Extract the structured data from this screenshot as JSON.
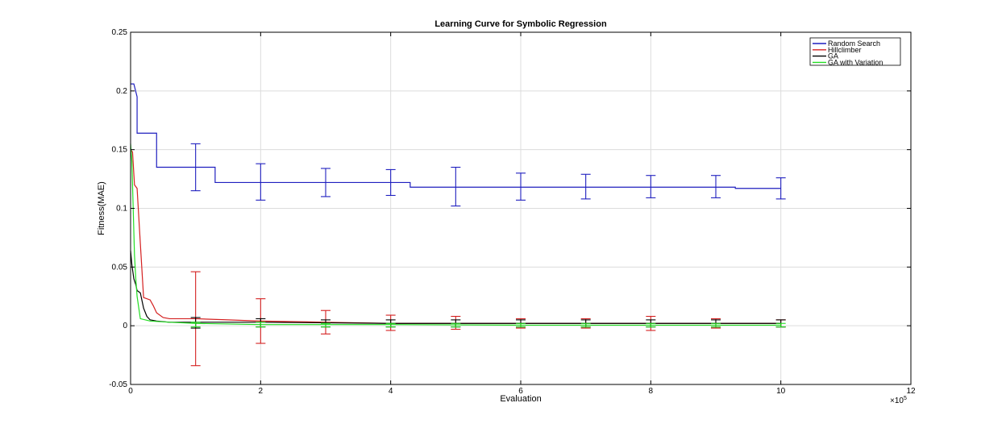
{
  "chart_data": {
    "type": "line",
    "title": "Learning Curve for Symbolic Regression",
    "xlabel": "Evaluation",
    "ylabel": "Fitness(MAE)",
    "x_multiplier": "×10",
    "x_multiplier_exp": "5",
    "xlim": [
      0,
      12
    ],
    "ylim": [
      -0.05,
      0.25
    ],
    "xticks": [
      0,
      2,
      4,
      6,
      8,
      10,
      12
    ],
    "xtick_labels": [
      "0",
      "2",
      "4",
      "6",
      "8",
      "10",
      "12"
    ],
    "yticks": [
      -0.05,
      0,
      0.05,
      0.1,
      0.15,
      0.2,
      0.25
    ],
    "ytick_labels": [
      "-0.05",
      "0",
      "0.05",
      "0.1",
      "0.15",
      "0.2",
      "0.25"
    ],
    "grid": true,
    "legend_position": "top-right",
    "series": [
      {
        "name": "Random Search",
        "color": "#1f1fbf",
        "step": true,
        "x": [
          0,
          0.05,
          0.1,
          0.1,
          0.4,
          0.4,
          1.3,
          1.3,
          4.3,
          4.3,
          9.3,
          9.3,
          10
        ],
        "y": [
          0.206,
          0.206,
          0.195,
          0.164,
          0.164,
          0.135,
          0.135,
          0.122,
          0.122,
          0.118,
          0.118,
          0.117,
          0.117
        ],
        "error_bars": {
          "x": [
            1,
            2,
            3,
            4,
            5,
            6,
            7,
            8,
            9,
            10
          ],
          "y": [
            0.135,
            0.122,
            0.122,
            0.122,
            0.118,
            0.118,
            0.118,
            0.118,
            0.118,
            0.117
          ],
          "lower": [
            0.115,
            0.107,
            0.11,
            0.111,
            0.102,
            0.107,
            0.108,
            0.109,
            0.109,
            0.108
          ],
          "upper": [
            0.155,
            0.138,
            0.134,
            0.133,
            0.135,
            0.13,
            0.129,
            0.128,
            0.128,
            0.126
          ]
        }
      },
      {
        "name": "Hillclimber",
        "color": "#d42020",
        "step": false,
        "x": [
          0,
          0.03,
          0.06,
          0.1,
          0.15,
          0.2,
          0.3,
          0.35,
          0.4,
          0.5,
          0.6,
          0.8,
          1,
          1.5,
          2,
          3,
          4,
          6,
          8,
          10
        ],
        "y": [
          0.15,
          0.148,
          0.12,
          0.117,
          0.07,
          0.024,
          0.022,
          0.017,
          0.011,
          0.007,
          0.006,
          0.006,
          0.006,
          0.005,
          0.004,
          0.003,
          0.002,
          0.002,
          0.002,
          0.002
        ],
        "error_bars": {
          "x": [
            1,
            2,
            3,
            4,
            5,
            6,
            7,
            8,
            9,
            10
          ],
          "y": [
            0.006,
            0.004,
            0.003,
            0.002,
            0.002,
            0.002,
            0.002,
            0.002,
            0.002,
            0.002
          ],
          "lower": [
            -0.034,
            -0.015,
            -0.007,
            -0.004,
            -0.003,
            -0.002,
            -0.002,
            -0.004,
            -0.002,
            -0.001
          ],
          "upper": [
            0.046,
            0.023,
            0.013,
            0.009,
            0.008,
            0.006,
            0.006,
            0.008,
            0.006,
            0.005
          ]
        }
      },
      {
        "name": "GA",
        "color": "#000000",
        "step": false,
        "x": [
          0,
          0.02,
          0.05,
          0.08,
          0.1,
          0.15,
          0.2,
          0.25,
          0.3,
          0.4,
          0.6,
          1,
          2,
          4,
          6,
          8,
          10
        ],
        "y": [
          0.064,
          0.052,
          0.04,
          0.035,
          0.03,
          0.028,
          0.015,
          0.008,
          0.005,
          0.004,
          0.003,
          0.003,
          0.003,
          0.002,
          0.002,
          0.002,
          0.002
        ],
        "error_bars": {
          "x": [
            1,
            2,
            3,
            4,
            5,
            6,
            7,
            8,
            9,
            10
          ],
          "y": [
            0.003,
            0.003,
            0.002,
            0.002,
            0.002,
            0.002,
            0.002,
            0.002,
            0.002,
            0.002
          ],
          "lower": [
            -0.002,
            -0.001,
            -0.001,
            -0.001,
            -0.001,
            -0.001,
            -0.001,
            -0.001,
            -0.001,
            -0.001
          ],
          "upper": [
            0.007,
            0.006,
            0.005,
            0.005,
            0.005,
            0.005,
            0.005,
            0.005,
            0.005,
            0.005
          ]
        }
      },
      {
        "name": "GA with Variation",
        "color": "#22dd22",
        "step": false,
        "x": [
          0,
          0.02,
          0.04,
          0.06,
          0.08,
          0.1,
          0.15,
          0.3,
          0.6,
          1,
          2,
          4,
          6,
          8,
          10
        ],
        "y": [
          0.155,
          0.14,
          0.1,
          0.06,
          0.04,
          0.025,
          0.006,
          0.004,
          0.003,
          0.002,
          0.001,
          0.001,
          0.0005,
          0.0005,
          0.0005
        ],
        "error_bars": {
          "x": [
            1,
            2,
            3,
            4,
            5,
            6,
            7,
            8,
            9,
            10
          ],
          "y": [
            0.001,
            0.0008,
            0.0006,
            0.0005,
            0.0005,
            0.0005,
            0.0005,
            0.0005,
            0.0005,
            0.0005
          ],
          "lower": [
            -0.001,
            -0.001,
            -0.001,
            -0.001,
            -0.001,
            -0.001,
            -0.001,
            -0.001,
            -0.001,
            -0.001
          ],
          "upper": [
            0.003,
            0.003,
            0.002,
            0.002,
            0.002,
            0.002,
            0.002,
            0.002,
            0.002,
            0.002
          ]
        }
      }
    ]
  }
}
